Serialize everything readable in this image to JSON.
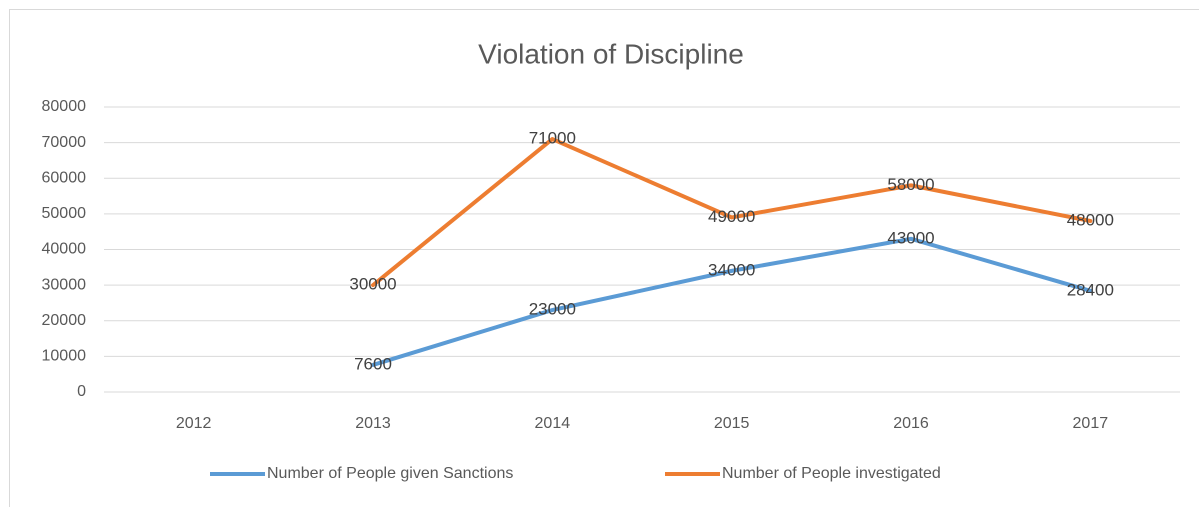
{
  "chart_data": {
    "type": "line",
    "title": "Violation of Discipline",
    "categories": [
      "2012",
      "2013",
      "2014",
      "2015",
      "2016",
      "2017"
    ],
    "series": [
      {
        "name": "Number of People given Sanctions",
        "color": "#5b9bd5",
        "values": [
          null,
          7600,
          23000,
          34000,
          43000,
          28400
        ]
      },
      {
        "name": "Number of People investigated",
        "color": "#ed7d31",
        "values": [
          null,
          30000,
          71000,
          49000,
          58000,
          48000
        ]
      }
    ],
    "ylim": [
      0,
      80000
    ],
    "yticks": [
      0,
      10000,
      20000,
      30000,
      40000,
      50000,
      60000,
      70000,
      80000
    ],
    "grid": true,
    "legend": "bottom",
    "data_labels": true
  }
}
